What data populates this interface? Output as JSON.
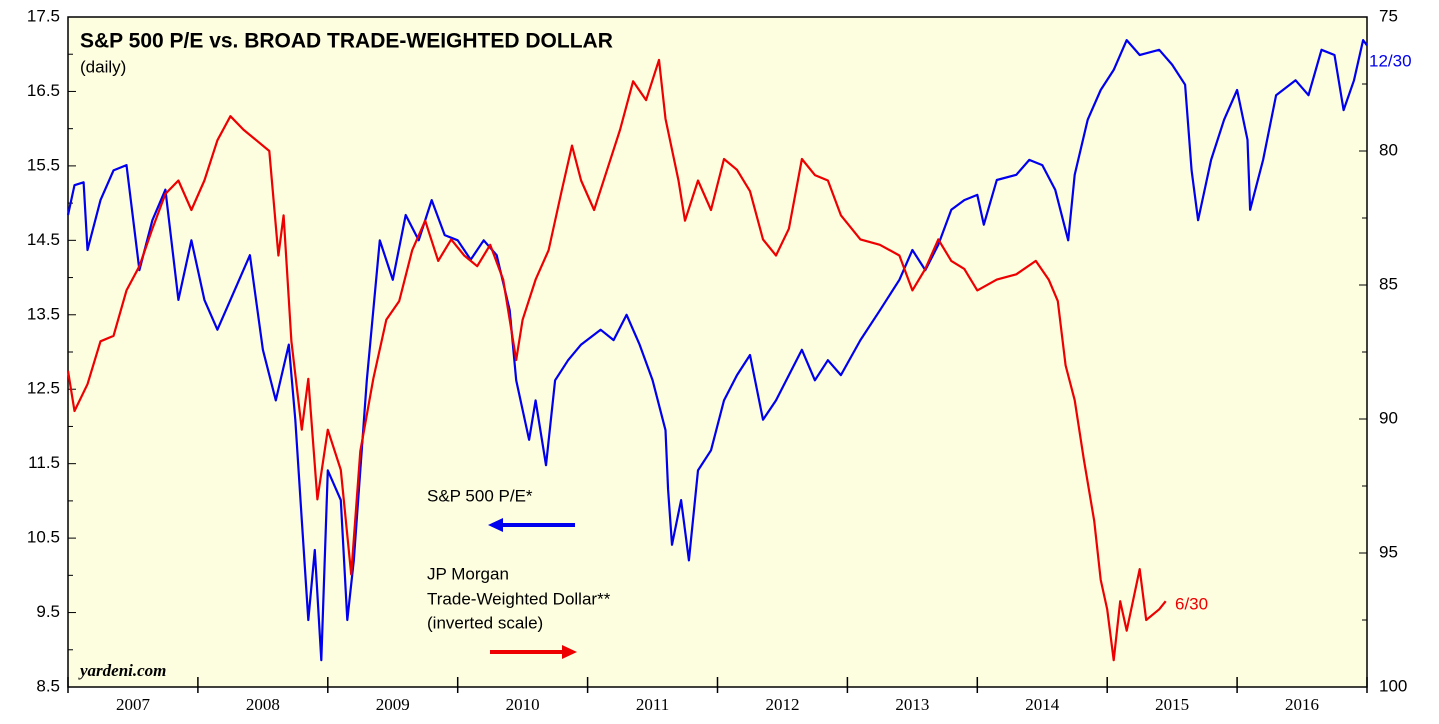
{
  "chart_data": {
    "type": "line",
    "title": "S&P 500 P/E vs. BROAD TRADE-WEIGHTED DOLLAR",
    "subtitle": "(daily)",
    "source": "yardeni.com",
    "annotations": [
      "S&P 500 P/E*",
      "JP Morgan",
      "Trade-Weighted Dollar**",
      "(inverted scale)",
      "12/30",
      "6/30"
    ],
    "xlim": [
      2007,
      2017
    ],
    "xticks": [
      {
        "value": 2007.5,
        "label": "2007"
      },
      {
        "value": 2008.5,
        "label": "2008"
      },
      {
        "value": 2009.5,
        "label": "2009"
      },
      {
        "value": 2010.5,
        "label": "2010"
      },
      {
        "value": 2011.5,
        "label": "2011"
      },
      {
        "value": 2012.5,
        "label": "2012"
      },
      {
        "value": 2013.5,
        "label": "2013"
      },
      {
        "value": 2014.5,
        "label": "2014"
      },
      {
        "value": 2015.5,
        "label": "2015"
      },
      {
        "value": 2016.5,
        "label": "2016"
      }
    ],
    "ylim": [
      8.5,
      17.5
    ],
    "yticks": [
      8.5,
      9.5,
      10.5,
      11.5,
      12.5,
      13.5,
      14.5,
      15.5,
      16.5,
      17.5
    ],
    "y2lim": [
      100,
      75
    ],
    "y2ticks": [
      75,
      80,
      85,
      90,
      95,
      100
    ],
    "series": [
      {
        "name": "S&P 500 P/E",
        "color": "#0000ee",
        "x": [
          2007.0,
          2007.05,
          2007.12,
          2007.15,
          2007.25,
          2007.35,
          2007.45,
          2007.55,
          2007.65,
          2007.75,
          2007.85,
          2007.95,
          2008.05,
          2008.15,
          2008.25,
          2008.4,
          2008.5,
          2008.6,
          2008.7,
          2008.75,
          2008.8,
          2008.85,
          2008.9,
          2008.95,
          2009.0,
          2009.1,
          2009.15,
          2009.2,
          2009.3,
          2009.4,
          2009.5,
          2009.6,
          2009.7,
          2009.8,
          2009.9,
          2010.0,
          2010.1,
          2010.2,
          2010.3,
          2010.4,
          2010.45,
          2010.55,
          2010.6,
          2010.68,
          2010.75,
          2010.85,
          2010.95,
          2011.1,
          2011.2,
          2011.3,
          2011.4,
          2011.5,
          2011.6,
          2011.62,
          2011.65,
          2011.72,
          2011.78,
          2011.85,
          2011.95,
          2012.05,
          2012.15,
          2012.25,
          2012.35,
          2012.45,
          2012.55,
          2012.65,
          2012.75,
          2012.85,
          2012.95,
          2013.1,
          2013.25,
          2013.4,
          2013.5,
          2013.6,
          2013.7,
          2013.8,
          2013.9,
          2014.0,
          2014.05,
          2014.15,
          2014.3,
          2014.4,
          2014.5,
          2014.6,
          2014.7,
          2014.75,
          2014.85,
          2014.95,
          2015.05,
          2015.15,
          2015.25,
          2015.4,
          2015.5,
          2015.6,
          2015.65,
          2015.7,
          2015.8,
          2015.9,
          2016.0,
          2016.08,
          2016.1,
          2016.2,
          2016.3,
          2016.45,
          2016.55,
          2016.65,
          2016.75,
          2016.82,
          2016.9,
          2016.97,
          2017.0
        ],
        "values": [
          14.84,
          15.24,
          15.28,
          14.37,
          15.04,
          15.44,
          15.51,
          14.1,
          14.77,
          15.18,
          13.7,
          14.5,
          13.7,
          13.3,
          13.7,
          14.3,
          13.03,
          12.35,
          13.1,
          12.09,
          10.74,
          9.4,
          10.34,
          8.86,
          11.41,
          11.01,
          9.4,
          10.2,
          12.62,
          14.5,
          13.97,
          14.84,
          14.5,
          15.04,
          14.57,
          14.5,
          14.24,
          14.5,
          14.3,
          13.56,
          12.62,
          11.82,
          12.35,
          11.48,
          12.62,
          12.89,
          13.1,
          13.3,
          13.16,
          13.5,
          13.1,
          12.62,
          11.95,
          11.15,
          10.41,
          11.01,
          10.2,
          11.41,
          11.68,
          12.35,
          12.69,
          12.96,
          12.09,
          12.35,
          12.69,
          13.03,
          12.62,
          12.89,
          12.69,
          13.16,
          13.56,
          13.97,
          14.37,
          14.1,
          14.44,
          14.91,
          15.04,
          15.11,
          14.71,
          15.31,
          15.38,
          15.58,
          15.51,
          15.18,
          14.5,
          15.38,
          16.12,
          16.52,
          16.79,
          17.19,
          16.99,
          17.06,
          16.86,
          16.59,
          15.44,
          14.77,
          15.58,
          16.12,
          16.52,
          15.85,
          14.91,
          15.58,
          16.45,
          16.65,
          16.45,
          17.06,
          16.99,
          16.25,
          16.65,
          17.19,
          17.12
        ]
      },
      {
        "name": "JP Morgan Trade-Weighted Dollar",
        "color": "#ee0000",
        "axis": "y2",
        "x": [
          2007.0,
          2007.05,
          2007.15,
          2007.25,
          2007.35,
          2007.45,
          2007.55,
          2007.65,
          2007.75,
          2007.85,
          2007.95,
          2008.05,
          2008.15,
          2008.25,
          2008.35,
          2008.45,
          2008.55,
          2008.62,
          2008.66,
          2008.72,
          2008.8,
          2008.85,
          2008.92,
          2009.0,
          2009.1,
          2009.18,
          2009.25,
          2009.35,
          2009.45,
          2009.55,
          2009.65,
          2009.75,
          2009.85,
          2009.95,
          2010.05,
          2010.15,
          2010.25,
          2010.35,
          2010.45,
          2010.5,
          2010.6,
          2010.7,
          2010.8,
          2010.88,
          2010.95,
          2011.05,
          2011.15,
          2011.25,
          2011.35,
          2011.45,
          2011.55,
          2011.6,
          2011.7,
          2011.75,
          2011.85,
          2011.95,
          2012.05,
          2012.15,
          2012.25,
          2012.35,
          2012.45,
          2012.55,
          2012.65,
          2012.75,
          2012.85,
          2012.95,
          2013.1,
          2013.25,
          2013.4,
          2013.5,
          2013.6,
          2013.7,
          2013.8,
          2013.9,
          2014.0,
          2014.15,
          2014.3,
          2014.45,
          2014.55,
          2014.62,
          2014.68,
          2014.75,
          2014.82,
          2014.9,
          2014.95,
          2015.0,
          2015.05,
          2015.1,
          2015.15,
          2015.25,
          2015.3,
          2015.4,
          2015.45
        ],
        "values": [
          88.2,
          89.7,
          88.7,
          87.1,
          86.9,
          85.2,
          84.3,
          82.9,
          81.6,
          81.1,
          82.2,
          81.1,
          79.6,
          78.7,
          79.2,
          79.6,
          80.0,
          83.9,
          82.4,
          87.1,
          90.4,
          88.5,
          93.0,
          90.4,
          91.9,
          95.8,
          91.2,
          88.5,
          86.3,
          85.6,
          83.7,
          82.6,
          84.1,
          83.3,
          83.9,
          84.3,
          83.5,
          84.8,
          87.8,
          86.3,
          84.8,
          83.7,
          81.5,
          79.8,
          81.1,
          82.2,
          80.7,
          79.2,
          77.4,
          78.1,
          76.6,
          78.8,
          81.1,
          82.6,
          81.1,
          82.2,
          80.3,
          80.7,
          81.5,
          83.3,
          83.9,
          82.9,
          80.3,
          80.9,
          81.1,
          82.4,
          83.3,
          83.5,
          83.9,
          85.2,
          84.4,
          83.3,
          84.1,
          84.4,
          85.2,
          84.8,
          84.6,
          84.1,
          84.8,
          85.6,
          88.0,
          89.3,
          91.5,
          93.8,
          96.0,
          97.1,
          99.0,
          96.8,
          97.9,
          95.6,
          97.5,
          97.1,
          96.8
        ]
      }
    ]
  }
}
